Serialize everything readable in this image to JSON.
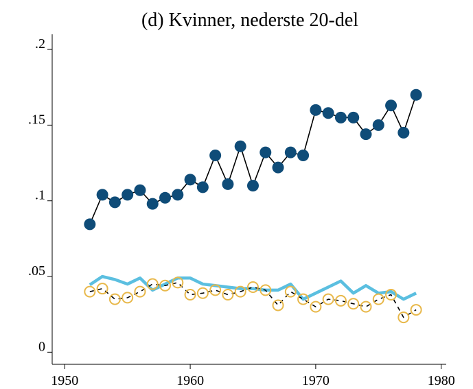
{
  "chart_data": {
    "type": "line",
    "title": "(d) Kvinner, nederste 20-del",
    "x": [
      1952,
      1953,
      1954,
      1955,
      1956,
      1957,
      1958,
      1959,
      1960,
      1961,
      1962,
      1963,
      1964,
      1965,
      1966,
      1967,
      1968,
      1969,
      1970,
      1971,
      1972,
      1973,
      1974,
      1975,
      1976,
      1977,
      1978
    ],
    "series": [
      {
        "color": "#0f4c78",
        "marker": "filled",
        "line_color": "#000000",
        "dashed": false,
        "values": [
          0.0845,
          0.104,
          0.099,
          0.104,
          0.107,
          0.098,
          0.102,
          0.104,
          0.114,
          0.109,
          0.13,
          0.111,
          0.136,
          0.11,
          0.132,
          0.122,
          0.132,
          0.13,
          0.16,
          0.158,
          0.155,
          0.155,
          0.144,
          0.15,
          0.163,
          0.145,
          0.17
        ]
      },
      {
        "color": "#5bbfe0",
        "marker": "none",
        "line_color": "#5bbfe0",
        "dashed": false,
        "values": [
          0.0445,
          0.05,
          0.048,
          0.045,
          0.049,
          0.041,
          0.045,
          0.049,
          0.049,
          0.045,
          0.044,
          0.043,
          0.042,
          0.042,
          0.041,
          0.041,
          0.045,
          0.035,
          0.039,
          0.043,
          0.047,
          0.039,
          0.044,
          0.039,
          0.04,
          0.035,
          0.039
        ]
      },
      {
        "color": "#e8b84a",
        "marker": "hollow",
        "line_color": "#000000",
        "dashed": true,
        "values": [
          0.04,
          0.042,
          0.035,
          0.036,
          0.04,
          0.045,
          0.044,
          0.046,
          0.038,
          0.039,
          0.041,
          0.038,
          0.04,
          0.043,
          0.041,
          0.031,
          0.04,
          0.035,
          0.03,
          0.035,
          0.034,
          0.032,
          0.03,
          0.035,
          0.038,
          0.023,
          0.028
        ]
      }
    ],
    "xlim": [
      1949,
      1980.4
    ],
    "xticks": [
      1950,
      1960,
      1970,
      1980
    ],
    "ylim": [
      -0.008,
      0.21
    ],
    "yticks": [
      0,
      {
        "value": 0.05,
        "label": ".05"
      },
      {
        "value": 0.1,
        "label": ".1"
      },
      {
        "value": 0.15,
        "label": ".15"
      },
      {
        "value": 0.2,
        "label": ".2"
      }
    ],
    "grid": false
  }
}
